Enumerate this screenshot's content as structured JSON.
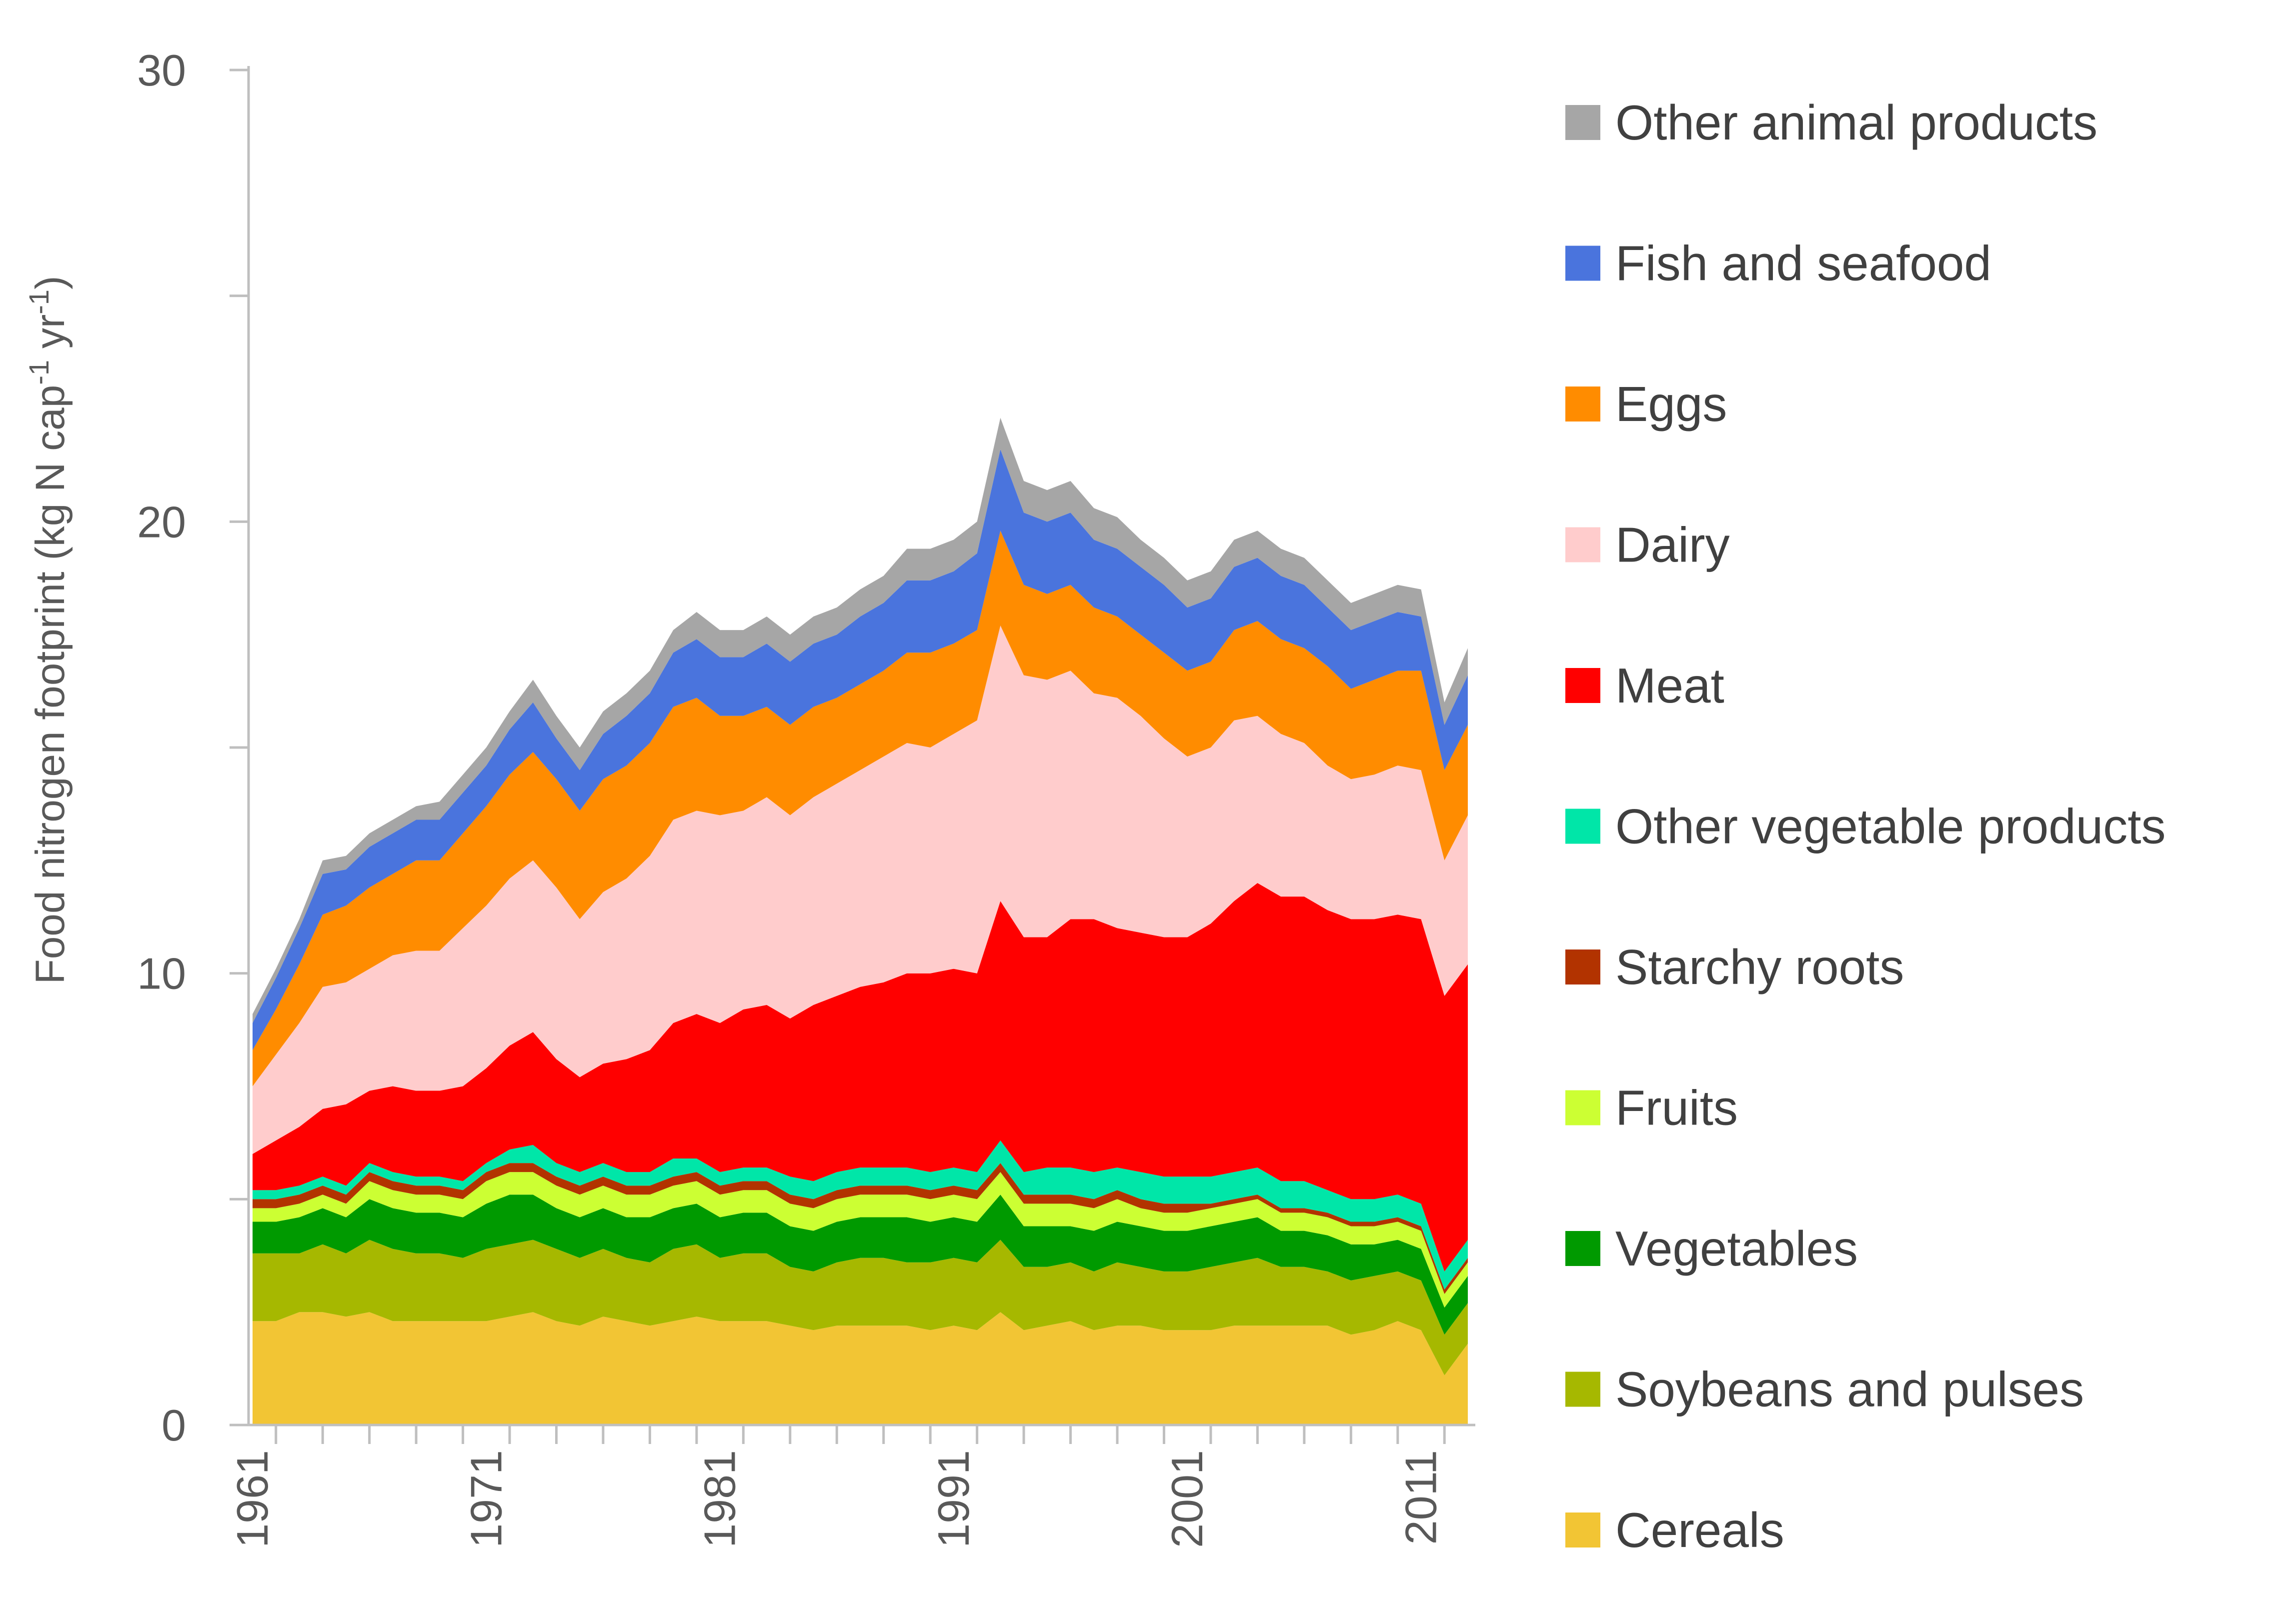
{
  "chart_data": {
    "type": "area",
    "stacked": true,
    "ylabel_parts": [
      "Food nitrogen footprint (kg N cap",
      "-1",
      " yr",
      "-1",
      ")"
    ],
    "ylim": [
      0,
      30
    ],
    "yticks": [
      "0",
      "10",
      "20",
      "30"
    ],
    "xticks": [
      "1961",
      "1971",
      "1981",
      "1991",
      "2001",
      "2011"
    ],
    "x": [
      1961,
      1962,
      1963,
      1964,
      1965,
      1966,
      1967,
      1968,
      1969,
      1970,
      1971,
      1972,
      1973,
      1974,
      1975,
      1976,
      1977,
      1978,
      1979,
      1980,
      1981,
      1982,
      1983,
      1984,
      1985,
      1986,
      1987,
      1988,
      1989,
      1990,
      1991,
      1992,
      1993,
      1994,
      1995,
      1996,
      1997,
      1998,
      1999,
      2000,
      2001,
      2002,
      2003,
      2004,
      2005,
      2006,
      2007,
      2008,
      2009,
      2010,
      2011,
      2012,
      2013
    ],
    "grid": false,
    "legend_position": "right",
    "series": [
      {
        "name": "Cereals",
        "color": "#F2C534",
        "values": [
          2.3,
          2.3,
          2.5,
          2.5,
          2.4,
          2.5,
          2.3,
          2.3,
          2.3,
          2.3,
          2.3,
          2.4,
          2.5,
          2.3,
          2.2,
          2.4,
          2.3,
          2.2,
          2.3,
          2.4,
          2.3,
          2.3,
          2.3,
          2.2,
          2.1,
          2.2,
          2.2,
          2.2,
          2.2,
          2.1,
          2.2,
          2.1,
          2.5,
          2.1,
          2.2,
          2.3,
          2.1,
          2.2,
          2.2,
          2.1,
          2.1,
          2.1,
          2.2,
          2.2,
          2.2,
          2.2,
          2.2,
          2.0,
          2.1,
          2.3,
          2.1,
          1.1,
          1.8
        ]
      },
      {
        "name": "Soybeans and pulses",
        "color": "#A6B800",
        "values": [
          1.5,
          1.5,
          1.3,
          1.5,
          1.4,
          1.6,
          1.6,
          1.5,
          1.5,
          1.4,
          1.6,
          1.6,
          1.6,
          1.6,
          1.5,
          1.5,
          1.4,
          1.4,
          1.6,
          1.6,
          1.4,
          1.5,
          1.5,
          1.3,
          1.3,
          1.4,
          1.5,
          1.5,
          1.4,
          1.5,
          1.5,
          1.5,
          1.6,
          1.4,
          1.3,
          1.3,
          1.3,
          1.4,
          1.3,
          1.3,
          1.3,
          1.4,
          1.4,
          1.5,
          1.3,
          1.3,
          1.2,
          1.2,
          1.2,
          1.1,
          1.1,
          0.9,
          0.9
        ]
      },
      {
        "name": "Vegetables",
        "color": "#009A00",
        "values": [
          0.7,
          0.7,
          0.8,
          0.8,
          0.8,
          0.9,
          0.9,
          0.9,
          0.9,
          0.9,
          1.0,
          1.1,
          1.0,
          0.9,
          0.9,
          0.9,
          0.9,
          1.0,
          0.9,
          0.9,
          0.9,
          0.9,
          0.9,
          0.9,
          0.9,
          0.9,
          0.9,
          0.9,
          1.0,
          0.9,
          0.9,
          0.9,
          1.0,
          0.9,
          0.9,
          0.8,
          0.9,
          0.9,
          0.9,
          0.9,
          0.9,
          0.9,
          0.9,
          0.9,
          0.8,
          0.8,
          0.8,
          0.8,
          0.7,
          0.7,
          0.7,
          0.6,
          0.6
        ]
      },
      {
        "name": "Fruits",
        "color": "#CCFF33",
        "values": [
          0.3,
          0.3,
          0.3,
          0.3,
          0.3,
          0.4,
          0.4,
          0.4,
          0.4,
          0.4,
          0.5,
          0.5,
          0.5,
          0.5,
          0.5,
          0.5,
          0.5,
          0.5,
          0.5,
          0.5,
          0.5,
          0.5,
          0.5,
          0.5,
          0.5,
          0.5,
          0.5,
          0.5,
          0.5,
          0.5,
          0.5,
          0.5,
          0.5,
          0.5,
          0.5,
          0.5,
          0.5,
          0.5,
          0.4,
          0.4,
          0.4,
          0.4,
          0.4,
          0.4,
          0.4,
          0.4,
          0.4,
          0.4,
          0.4,
          0.4,
          0.4,
          0.3,
          0.3
        ]
      },
      {
        "name": "Starchy roots",
        "color": "#B23300",
        "values": [
          0.2,
          0.2,
          0.2,
          0.2,
          0.2,
          0.2,
          0.2,
          0.2,
          0.2,
          0.2,
          0.2,
          0.2,
          0.2,
          0.2,
          0.2,
          0.2,
          0.2,
          0.2,
          0.2,
          0.2,
          0.2,
          0.2,
          0.2,
          0.2,
          0.2,
          0.2,
          0.2,
          0.2,
          0.2,
          0.2,
          0.2,
          0.2,
          0.2,
          0.2,
          0.2,
          0.2,
          0.2,
          0.2,
          0.2,
          0.2,
          0.2,
          0.1,
          0.1,
          0.1,
          0.1,
          0.1,
          0.1,
          0.1,
          0.1,
          0.1,
          0.1,
          0.1,
          0.1
        ]
      },
      {
        "name": "Other vegetable products",
        "color": "#00E6A8",
        "values": [
          0.2,
          0.2,
          0.2,
          0.2,
          0.2,
          0.2,
          0.2,
          0.2,
          0.2,
          0.2,
          0.2,
          0.3,
          0.4,
          0.3,
          0.3,
          0.3,
          0.3,
          0.3,
          0.4,
          0.3,
          0.3,
          0.3,
          0.3,
          0.4,
          0.4,
          0.4,
          0.4,
          0.4,
          0.4,
          0.4,
          0.4,
          0.4,
          0.5,
          0.5,
          0.6,
          0.6,
          0.6,
          0.5,
          0.6,
          0.6,
          0.6,
          0.6,
          0.6,
          0.6,
          0.6,
          0.6,
          0.5,
          0.5,
          0.5,
          0.5,
          0.5,
          0.4,
          0.4
        ]
      },
      {
        "name": "Meat",
        "color": "#FF0000",
        "values": [
          0.8,
          1.1,
          1.3,
          1.5,
          1.8,
          1.6,
          1.9,
          1.9,
          1.9,
          2.1,
          2.1,
          2.3,
          2.5,
          2.3,
          2.1,
          2.2,
          2.5,
          2.7,
          3.0,
          3.2,
          3.3,
          3.5,
          3.6,
          3.5,
          3.9,
          3.9,
          4.0,
          4.1,
          4.3,
          4.4,
          4.4,
          4.4,
          5.3,
          5.2,
          5.1,
          5.5,
          5.6,
          5.3,
          5.3,
          5.3,
          5.3,
          5.6,
          6.0,
          6.3,
          6.3,
          6.3,
          6.2,
          6.2,
          6.2,
          6.2,
          6.3,
          6.1,
          6.1
        ]
      },
      {
        "name": "Dairy",
        "color": "#FFCCCC",
        "values": [
          1.5,
          1.9,
          2.3,
          2.7,
          2.7,
          2.7,
          2.9,
          3.1,
          3.1,
          3.5,
          3.6,
          3.7,
          3.8,
          3.8,
          3.5,
          3.8,
          4.0,
          4.3,
          4.5,
          4.5,
          4.6,
          4.4,
          4.6,
          4.5,
          4.6,
          4.7,
          4.8,
          5.0,
          5.1,
          5.0,
          5.2,
          5.6,
          6.1,
          5.8,
          5.7,
          5.5,
          5.0,
          5.1,
          4.8,
          4.4,
          4.0,
          3.9,
          4.0,
          3.7,
          3.6,
          3.4,
          3.2,
          3.1,
          3.2,
          3.3,
          3.3,
          3.0,
          3.3
        ]
      },
      {
        "name": "Eggs",
        "color": "#FF8C00",
        "values": [
          0.8,
          1.0,
          1.3,
          1.6,
          1.7,
          1.8,
          1.8,
          2.0,
          2.0,
          2.1,
          2.2,
          2.3,
          2.4,
          2.4,
          2.4,
          2.5,
          2.5,
          2.5,
          2.5,
          2.5,
          2.2,
          2.1,
          2.0,
          2.0,
          2.0,
          1.9,
          1.9,
          1.9,
          2.0,
          2.1,
          2.0,
          2.0,
          2.1,
          2.0,
          1.9,
          1.9,
          1.9,
          1.8,
          1.8,
          1.9,
          1.9,
          1.9,
          2.0,
          2.1,
          2.1,
          2.1,
          2.2,
          2.0,
          2.1,
          2.1,
          2.2,
          2.0,
          2.0
        ]
      },
      {
        "name": "Fish and seafood",
        "color": "#4A74DD",
        "values": [
          0.6,
          0.7,
          0.8,
          0.9,
          0.8,
          0.9,
          0.9,
          0.9,
          0.9,
          0.9,
          0.9,
          1.0,
          1.1,
          0.9,
          0.9,
          1.0,
          1.1,
          1.1,
          1.2,
          1.3,
          1.3,
          1.3,
          1.4,
          1.4,
          1.4,
          1.4,
          1.5,
          1.5,
          1.6,
          1.6,
          1.6,
          1.7,
          1.8,
          1.6,
          1.6,
          1.6,
          1.5,
          1.5,
          1.5,
          1.5,
          1.4,
          1.4,
          1.4,
          1.4,
          1.4,
          1.4,
          1.3,
          1.3,
          1.3,
          1.3,
          1.2,
          1.0,
          1.1
        ]
      },
      {
        "name": "Other animal products",
        "color": "#A6A6A6",
        "values": [
          0.2,
          0.2,
          0.2,
          0.3,
          0.3,
          0.3,
          0.3,
          0.3,
          0.4,
          0.4,
          0.4,
          0.4,
          0.5,
          0.5,
          0.5,
          0.5,
          0.5,
          0.5,
          0.5,
          0.6,
          0.6,
          0.6,
          0.6,
          0.6,
          0.6,
          0.6,
          0.6,
          0.6,
          0.7,
          0.7,
          0.7,
          0.7,
          0.7,
          0.7,
          0.7,
          0.7,
          0.7,
          0.7,
          0.6,
          0.6,
          0.6,
          0.6,
          0.6,
          0.6,
          0.6,
          0.6,
          0.6,
          0.6,
          0.6,
          0.6,
          0.6,
          0.5,
          0.6
        ]
      }
    ]
  }
}
